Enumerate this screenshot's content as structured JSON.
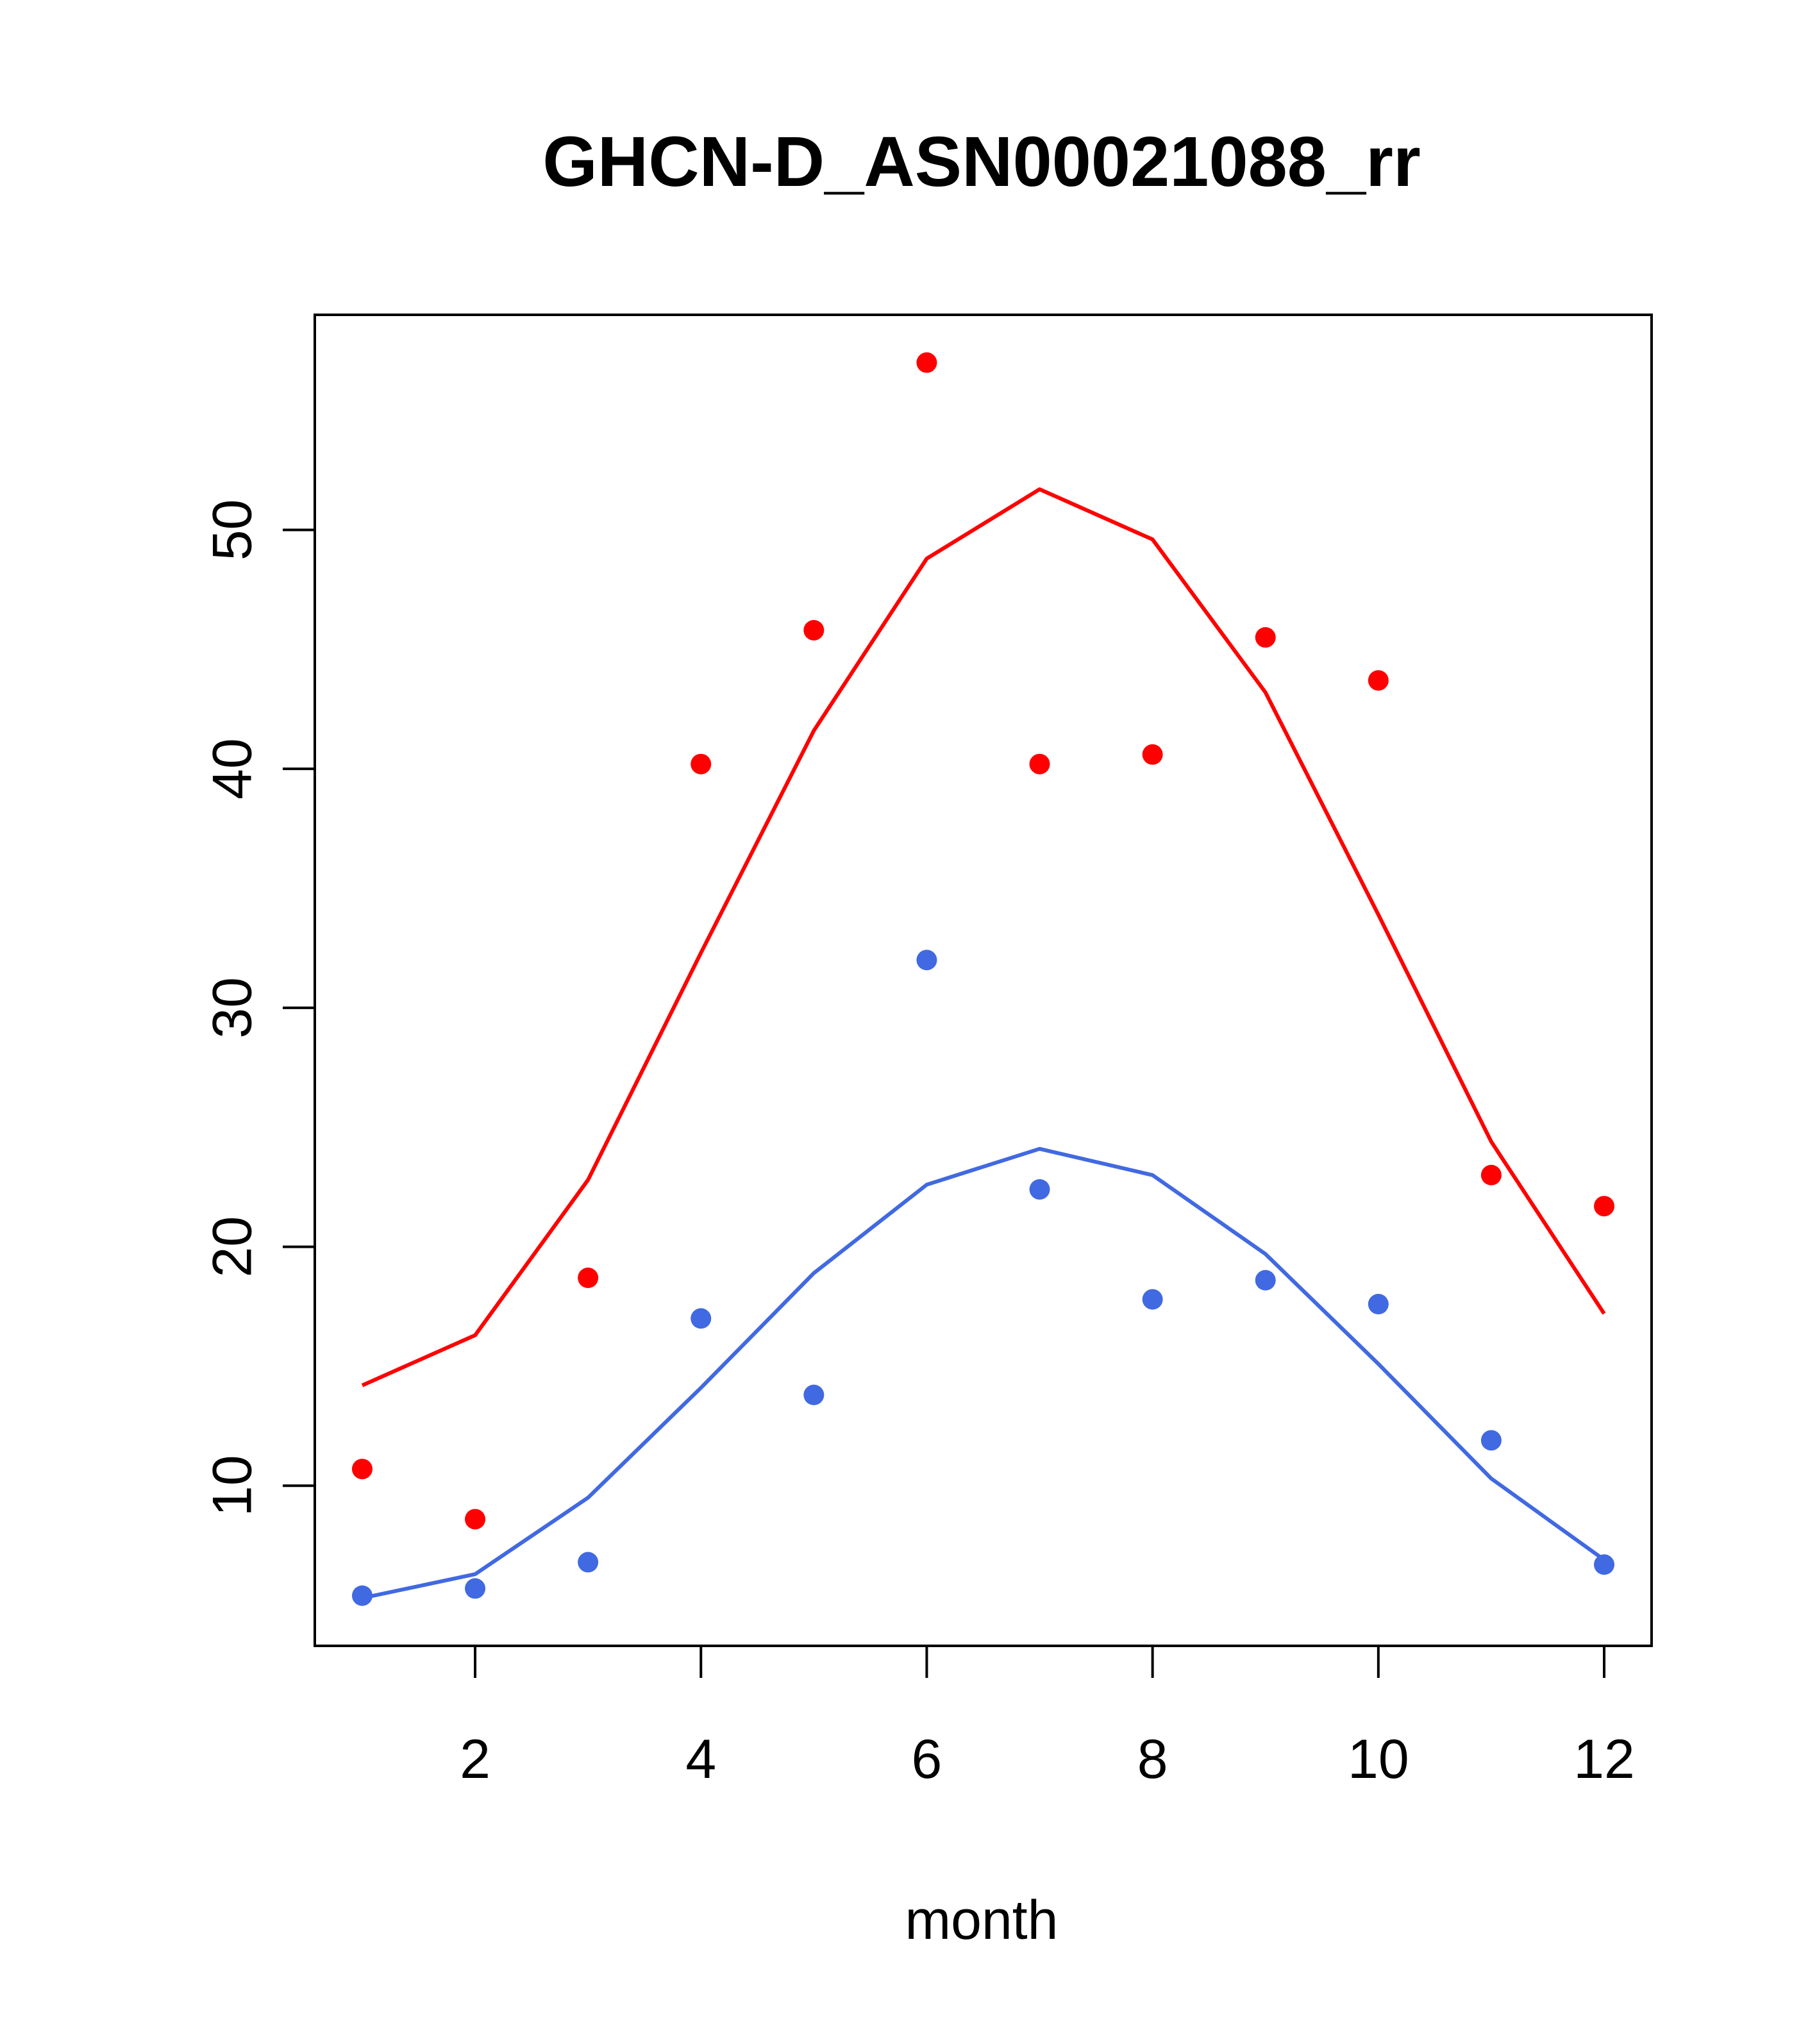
{
  "chart_data": {
    "type": "scatter",
    "title": "GHCN-D_ASN00021088_rr",
    "xlabel": "month",
    "ylabel": "",
    "xlim": [
      0.58,
      12.42
    ],
    "ylim": [
      3.3,
      59.0
    ],
    "xticks": [
      2,
      4,
      6,
      8,
      10,
      12
    ],
    "yticks": [
      10,
      20,
      30,
      40,
      50
    ],
    "grid": false,
    "series": [
      {
        "color": "#ff0000",
        "points_x": [
          1,
          2,
          3,
          4,
          5,
          6,
          7,
          8,
          9,
          10,
          11,
          12
        ],
        "points_y": [
          10.7,
          8.6,
          18.7,
          40.2,
          45.8,
          57.0,
          40.2,
          40.6,
          45.5,
          43.7,
          23.0,
          21.7
        ],
        "line_x": [
          1,
          2,
          3,
          4,
          5,
          6,
          7,
          8,
          9,
          10,
          11,
          12
        ],
        "line_y": [
          14.2,
          16.3,
          22.8,
          32.3,
          41.6,
          48.8,
          51.7,
          49.6,
          43.2,
          33.9,
          24.4,
          17.2
        ]
      },
      {
        "color": "#4169e1",
        "points_x": [
          1,
          2,
          3,
          4,
          5,
          6,
          7,
          8,
          9,
          10,
          11,
          12
        ],
        "points_y": [
          5.4,
          5.7,
          6.8,
          17.0,
          13.8,
          32.0,
          22.4,
          17.8,
          18.6,
          17.6,
          11.9,
          6.7
        ],
        "line_x": [
          1,
          2,
          3,
          4,
          5,
          6,
          7,
          8,
          9,
          10,
          11,
          12
        ],
        "line_y": [
          5.3,
          6.3,
          9.5,
          14.1,
          18.9,
          22.6,
          24.1,
          23.0,
          19.7,
          15.1,
          10.3,
          6.9
        ]
      }
    ]
  }
}
